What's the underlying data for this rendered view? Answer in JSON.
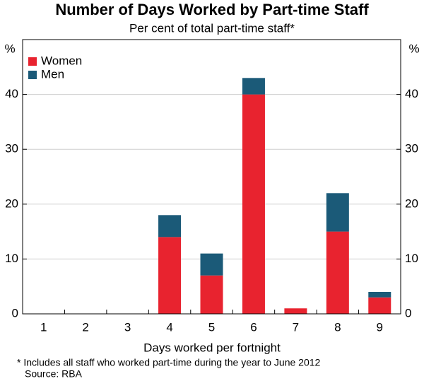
{
  "chart_data": {
    "type": "stacked_bar",
    "title": "Number of Days Worked by Part-time Staff",
    "subtitle": "Per cent of total part-time staff*",
    "y_unit": "%",
    "x_label": "Days worked per fortnight",
    "footnote": "*  Includes all staff who worked part-time during the year to June 2012",
    "source": "Source: RBA",
    "categories": [
      "1",
      "2",
      "3",
      "4",
      "5",
      "6",
      "7",
      "8",
      "9"
    ],
    "series": [
      {
        "name": "Women",
        "color": "#e8232f",
        "values": [
          0,
          0,
          0,
          14,
          7,
          40,
          1,
          15,
          3
        ]
      },
      {
        "name": "Men",
        "color": "#1b5a78",
        "values": [
          0,
          0,
          0,
          4,
          4,
          3,
          0,
          7,
          1
        ]
      }
    ],
    "ylim": [
      0,
      50
    ],
    "yticks": [
      0,
      10,
      20,
      30,
      40
    ],
    "grid": true,
    "legend": "top-left"
  }
}
